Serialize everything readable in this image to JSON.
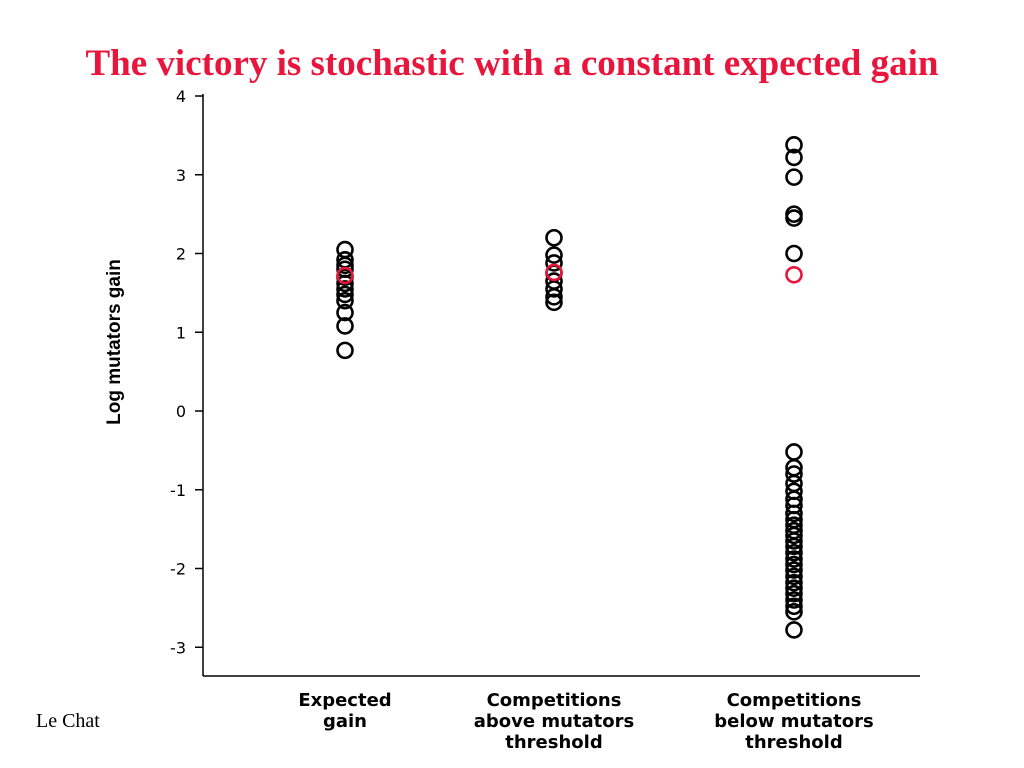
{
  "slide": {
    "title": "The victory is stochastic with a constant expected gain",
    "title_color": "#e8163c",
    "footer": "Le Chat"
  },
  "chart_data": {
    "type": "scatter",
    "title": "",
    "xlabel": "",
    "ylabel": "Log mutators gain",
    "ylim": [
      -3.3,
      4
    ],
    "yticks": [
      4,
      3,
      2,
      1,
      0,
      -1,
      -2,
      -3
    ],
    "categories": [
      [
        "Expected",
        "gain"
      ],
      [
        "Competitions",
        "above mutators",
        "threshold"
      ],
      [
        "Competitions",
        "below mutators",
        "threshold"
      ]
    ],
    "grid": false,
    "marker": "open-circle",
    "point_color": "#000000",
    "highlight_color": "#e8163c",
    "series": [
      {
        "values": [
          2.05,
          1.92,
          1.85,
          1.8,
          1.7,
          1.62,
          1.55,
          1.48,
          1.4,
          1.25,
          1.08,
          0.77
        ],
        "highlight": 1.72
      },
      {
        "values": [
          2.2,
          1.98,
          1.88,
          1.75,
          1.65,
          1.55,
          1.45,
          1.38
        ],
        "highlight": 1.76
      },
      {
        "values": [
          3.38,
          3.22,
          2.97,
          2.5,
          2.45,
          2.0,
          -0.52,
          -0.72,
          -0.8,
          -0.92,
          -1.02,
          -1.12,
          -1.2,
          -1.3,
          -1.38,
          -1.45,
          -1.52,
          -1.58,
          -1.65,
          -1.72,
          -1.8,
          -1.88,
          -1.95,
          -2.02,
          -2.1,
          -2.18,
          -2.25,
          -2.32,
          -2.4,
          -2.48,
          -2.55,
          -2.78
        ],
        "highlight": 1.73
      }
    ]
  }
}
